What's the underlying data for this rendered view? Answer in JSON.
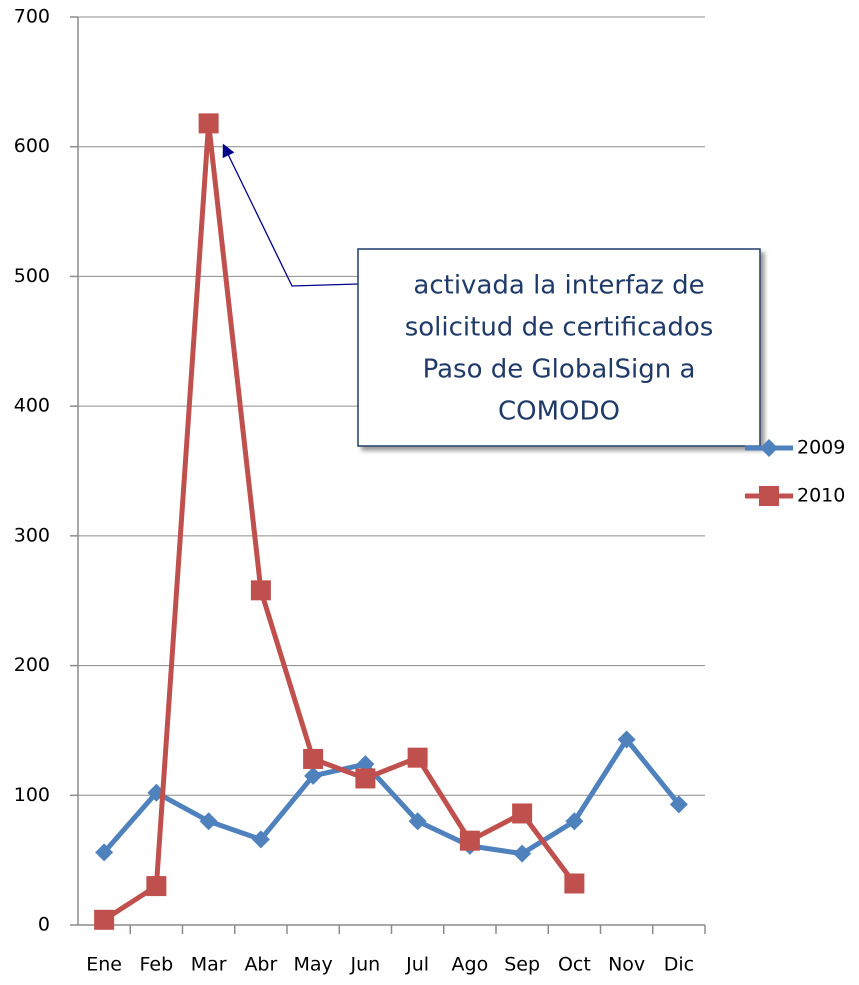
{
  "chart_data": {
    "type": "line",
    "categories": [
      "Ene",
      "Feb",
      "Mar",
      "Abr",
      "May",
      "Jun",
      "Jul",
      "Ago",
      "Sep",
      "Oct",
      "Nov",
      "Dic"
    ],
    "series": [
      {
        "name": "2009",
        "color": "#4f81bd",
        "marker": "diamond",
        "values": [
          56,
          102,
          80,
          66,
          115,
          124,
          80,
          61,
          55,
          80,
          143,
          93
        ]
      },
      {
        "name": "2010",
        "color": "#c0504d",
        "marker": "square",
        "values": [
          4,
          30,
          618,
          258,
          128,
          113,
          129,
          65,
          86,
          32,
          null,
          null
        ]
      }
    ],
    "ylim": [
      0,
      700
    ],
    "yticks": [
      0,
      100,
      200,
      300,
      400,
      500,
      600,
      700
    ],
    "grid": true,
    "legend": "right",
    "annotation": [
      "activada la interfaz de",
      "solicitud de certificados",
      "Paso de GlobalSign a",
      "COMODO"
    ]
  }
}
